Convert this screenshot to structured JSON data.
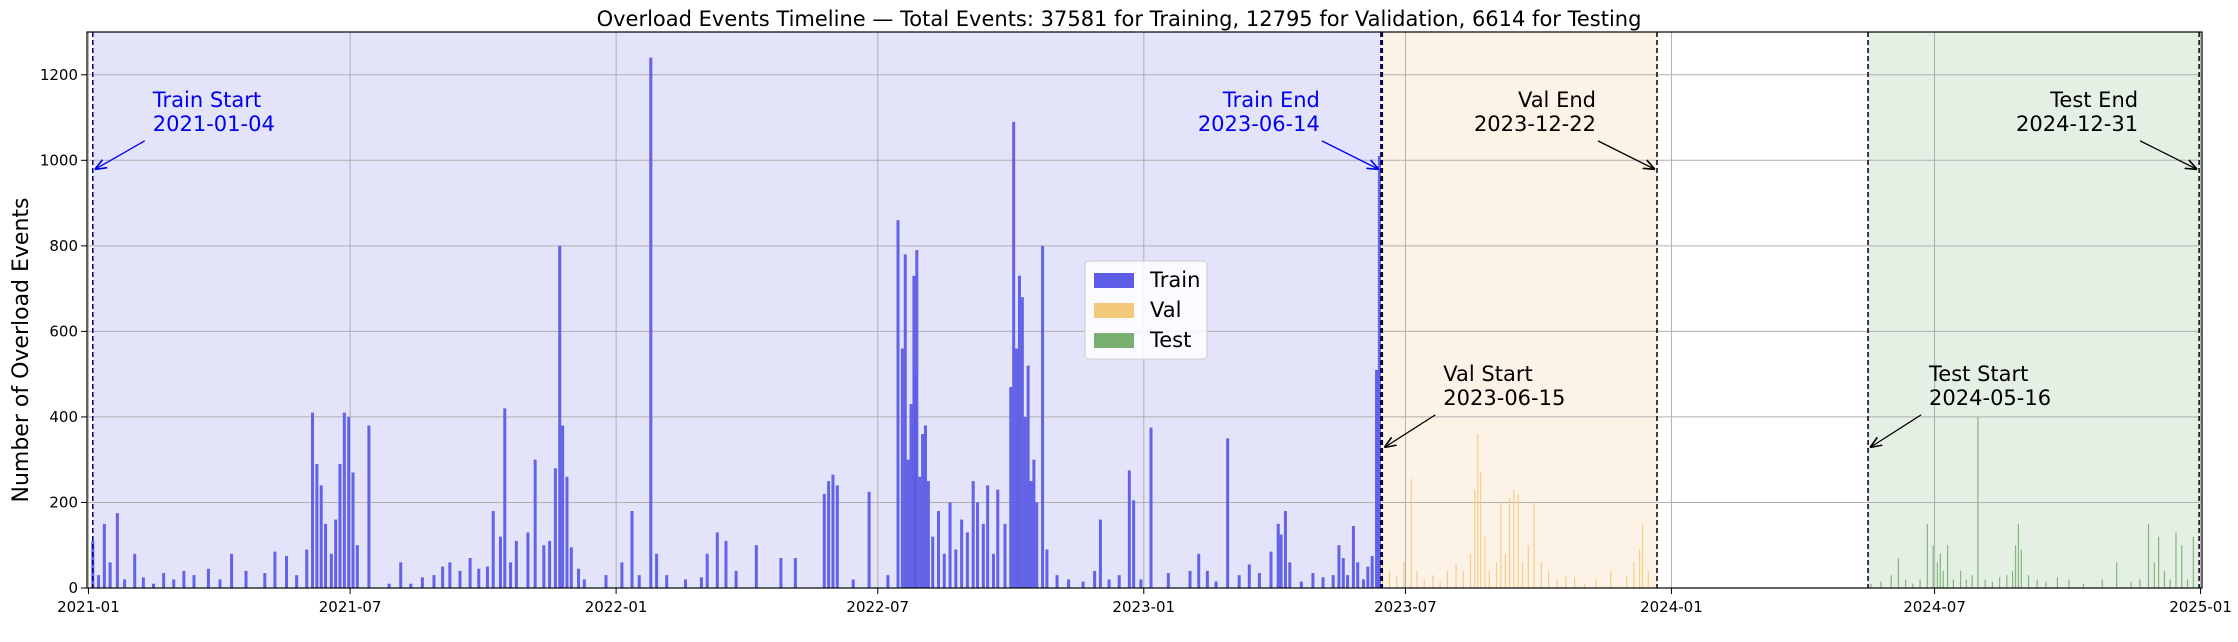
{
  "chart_data": {
    "type": "bar",
    "title": "Overload Events Timeline — Total Events: 37581 for Training, 12795 for Validation, 6614 for Testing",
    "xlabel": "",
    "ylabel": "Number of Overload Events",
    "x_axis": {
      "type": "date",
      "range": [
        "2020-12-31",
        "2025-01-02"
      ],
      "ticks": [
        {
          "date": "2021-01-01",
          "label": "2021-01"
        },
        {
          "date": "2021-07-01",
          "label": "2021-07"
        },
        {
          "date": "2022-01-01",
          "label": "2022-01"
        },
        {
          "date": "2022-07-01",
          "label": "2022-07"
        },
        {
          "date": "2023-01-01",
          "label": "2023-01"
        },
        {
          "date": "2023-07-01",
          "label": "2023-07"
        },
        {
          "date": "2024-01-01",
          "label": "2024-01"
        },
        {
          "date": "2024-07-01",
          "label": "2024-07"
        },
        {
          "date": "2025-01-01",
          "label": "2025-01"
        }
      ]
    },
    "y_axis": {
      "range": [
        0,
        1300
      ],
      "ticks": [
        0,
        200,
        400,
        600,
        800,
        1000,
        1200
      ]
    },
    "grid": true,
    "legend": {
      "placement": "center",
      "entries": [
        {
          "label": "Train",
          "color": "#5c5ce6"
        },
        {
          "label": "Val",
          "color": "#f5c97a"
        },
        {
          "label": "Test",
          "color": "#7aaf72"
        }
      ]
    },
    "regions": [
      {
        "name": "Train",
        "start": "2021-01-04",
        "end": "2023-06-14",
        "fill": "#e3e3fa"
      },
      {
        "name": "Val",
        "start": "2023-06-15",
        "end": "2023-12-22",
        "fill": "#fcf3e6"
      },
      {
        "name": "Test",
        "start": "2024-05-16",
        "end": "2024-12-31",
        "fill": "#e4f0e3"
      }
    ],
    "annotations": [
      {
        "line1": "Train Start",
        "line2": "2021-01-04",
        "color": "#0000ee",
        "target_date": "2021-01-04",
        "target_value": 980
      },
      {
        "line1": "Train End",
        "line2": "2023-06-14",
        "color": "#0000ee",
        "target_date": "2023-06-14",
        "target_value": 980
      },
      {
        "line1": "Val Start",
        "line2": "2023-06-15",
        "color": "#000000",
        "target_date": "2023-06-15",
        "target_value": 330
      },
      {
        "line1": "Val End",
        "line2": "2023-12-22",
        "color": "#000000",
        "target_date": "2023-12-22",
        "target_value": 980
      },
      {
        "line1": "Test Start",
        "line2": "2024-05-16",
        "color": "#000000",
        "target_date": "2024-05-16",
        "target_value": 330
      },
      {
        "line1": "Test End",
        "line2": "2024-12-31",
        "color": "#000000",
        "target_date": "2024-12-31",
        "target_value": 980
      }
    ],
    "series": [
      {
        "name": "Train",
        "color": "#5c5ce6",
        "points": [
          [
            "2021-01-04",
            110
          ],
          [
            "2021-01-08",
            30
          ],
          [
            "2021-01-12",
            150
          ],
          [
            "2021-01-16",
            60
          ],
          [
            "2021-01-21",
            175
          ],
          [
            "2021-01-26",
            20
          ],
          [
            "2021-02-02",
            80
          ],
          [
            "2021-02-08",
            25
          ],
          [
            "2021-02-15",
            10
          ],
          [
            "2021-02-22",
            35
          ],
          [
            "2021-03-01",
            20
          ],
          [
            "2021-03-08",
            40
          ],
          [
            "2021-03-15",
            30
          ],
          [
            "2021-03-25",
            45
          ],
          [
            "2021-04-02",
            20
          ],
          [
            "2021-04-10",
            80
          ],
          [
            "2021-04-20",
            40
          ],
          [
            "2021-05-03",
            35
          ],
          [
            "2021-05-10",
            85
          ],
          [
            "2021-05-18",
            75
          ],
          [
            "2021-05-25",
            30
          ],
          [
            "2021-06-01",
            90
          ],
          [
            "2021-06-05",
            410
          ],
          [
            "2021-06-08",
            290
          ],
          [
            "2021-06-11",
            240
          ],
          [
            "2021-06-14",
            150
          ],
          [
            "2021-06-18",
            80
          ],
          [
            "2021-06-21",
            160
          ],
          [
            "2021-06-24",
            290
          ],
          [
            "2021-06-27",
            410
          ],
          [
            "2021-06-30",
            400
          ],
          [
            "2021-07-03",
            270
          ],
          [
            "2021-07-06",
            100
          ],
          [
            "2021-07-14",
            380
          ],
          [
            "2021-07-28",
            10
          ],
          [
            "2021-08-05",
            60
          ],
          [
            "2021-08-12",
            10
          ],
          [
            "2021-08-20",
            25
          ],
          [
            "2021-08-28",
            30
          ],
          [
            "2021-09-03",
            50
          ],
          [
            "2021-09-08",
            60
          ],
          [
            "2021-09-15",
            40
          ],
          [
            "2021-09-22",
            70
          ],
          [
            "2021-09-28",
            45
          ],
          [
            "2021-10-04",
            50
          ],
          [
            "2021-10-08",
            180
          ],
          [
            "2021-10-13",
            120
          ],
          [
            "2021-10-16",
            420
          ],
          [
            "2021-10-20",
            60
          ],
          [
            "2021-10-24",
            110
          ],
          [
            "2021-11-01",
            130
          ],
          [
            "2021-11-06",
            300
          ],
          [
            "2021-11-12",
            100
          ],
          [
            "2021-11-16",
            110
          ],
          [
            "2021-11-20",
            280
          ],
          [
            "2021-11-23",
            800
          ],
          [
            "2021-11-25",
            380
          ],
          [
            "2021-11-28",
            260
          ],
          [
            "2021-12-01",
            95
          ],
          [
            "2021-12-06",
            45
          ],
          [
            "2021-12-10",
            20
          ],
          [
            "2021-12-25",
            30
          ],
          [
            "2022-01-05",
            60
          ],
          [
            "2022-01-12",
            180
          ],
          [
            "2022-01-17",
            30
          ],
          [
            "2022-01-25",
            1240
          ],
          [
            "2022-01-29",
            80
          ],
          [
            "2022-02-05",
            30
          ],
          [
            "2022-02-18",
            20
          ],
          [
            "2022-03-01",
            25
          ],
          [
            "2022-03-05",
            80
          ],
          [
            "2022-03-12",
            130
          ],
          [
            "2022-03-18",
            110
          ],
          [
            "2022-03-25",
            40
          ],
          [
            "2022-04-08",
            100
          ],
          [
            "2022-04-25",
            70
          ],
          [
            "2022-05-05",
            70
          ],
          [
            "2022-05-25",
            220
          ],
          [
            "2022-05-28",
            250
          ],
          [
            "2022-05-31",
            265
          ],
          [
            "2022-06-03",
            240
          ],
          [
            "2022-06-14",
            20
          ],
          [
            "2022-06-25",
            225
          ],
          [
            "2022-07-08",
            30
          ],
          [
            "2022-07-15",
            860
          ],
          [
            "2022-07-18",
            560
          ],
          [
            "2022-07-20",
            780
          ],
          [
            "2022-07-22",
            300
          ],
          [
            "2022-07-24",
            430
          ],
          [
            "2022-07-26",
            730
          ],
          [
            "2022-07-27",
            500
          ],
          [
            "2022-07-28",
            790
          ],
          [
            "2022-07-30",
            260
          ],
          [
            "2022-08-01",
            360
          ],
          [
            "2022-08-03",
            380
          ],
          [
            "2022-08-05",
            250
          ],
          [
            "2022-08-08",
            120
          ],
          [
            "2022-08-12",
            180
          ],
          [
            "2022-08-16",
            80
          ],
          [
            "2022-08-20",
            200
          ],
          [
            "2022-08-24",
            90
          ],
          [
            "2022-08-28",
            160
          ],
          [
            "2022-09-01",
            130
          ],
          [
            "2022-09-05",
            250
          ],
          [
            "2022-09-08",
            200
          ],
          [
            "2022-09-12",
            150
          ],
          [
            "2022-09-15",
            240
          ],
          [
            "2022-09-19",
            80
          ],
          [
            "2022-09-22",
            230
          ],
          [
            "2022-09-27",
            150
          ],
          [
            "2022-10-01",
            470
          ],
          [
            "2022-10-03",
            1090
          ],
          [
            "2022-10-05",
            560
          ],
          [
            "2022-10-07",
            730
          ],
          [
            "2022-10-09",
            680
          ],
          [
            "2022-10-11",
            400
          ],
          [
            "2022-10-13",
            520
          ],
          [
            "2022-10-15",
            250
          ],
          [
            "2022-10-17",
            300
          ],
          [
            "2022-10-19",
            200
          ],
          [
            "2022-10-23",
            800
          ],
          [
            "2022-10-26",
            90
          ],
          [
            "2022-11-02",
            30
          ],
          [
            "2022-11-10",
            20
          ],
          [
            "2022-11-20",
            15
          ],
          [
            "2022-11-28",
            40
          ],
          [
            "2022-12-02",
            160
          ],
          [
            "2022-12-08",
            20
          ],
          [
            "2022-12-15",
            30
          ],
          [
            "2022-12-22",
            275
          ],
          [
            "2022-12-25",
            205
          ],
          [
            "2022-12-30",
            20
          ],
          [
            "2023-01-06",
            375
          ],
          [
            "2023-01-18",
            35
          ],
          [
            "2023-02-02",
            40
          ],
          [
            "2023-02-08",
            80
          ],
          [
            "2023-02-14",
            40
          ],
          [
            "2023-02-20",
            15
          ],
          [
            "2023-02-28",
            350
          ],
          [
            "2023-03-08",
            30
          ],
          [
            "2023-03-15",
            55
          ],
          [
            "2023-03-22",
            35
          ],
          [
            "2023-03-30",
            85
          ],
          [
            "2023-04-04",
            150
          ],
          [
            "2023-04-06",
            125
          ],
          [
            "2023-04-09",
            180
          ],
          [
            "2023-04-12",
            60
          ],
          [
            "2023-04-20",
            15
          ],
          [
            "2023-04-28",
            35
          ],
          [
            "2023-05-05",
            25
          ],
          [
            "2023-05-12",
            30
          ],
          [
            "2023-05-16",
            100
          ],
          [
            "2023-05-19",
            70
          ],
          [
            "2023-05-22",
            30
          ],
          [
            "2023-05-26",
            145
          ],
          [
            "2023-05-29",
            60
          ],
          [
            "2023-06-02",
            20
          ],
          [
            "2023-06-05",
            50
          ],
          [
            "2023-06-08",
            75
          ],
          [
            "2023-06-11",
            510
          ],
          [
            "2023-06-13",
            1010
          ]
        ]
      },
      {
        "name": "Val",
        "color": "#f5c97a",
        "points": [
          [
            "2023-06-15",
            70
          ],
          [
            "2023-06-20",
            40
          ],
          [
            "2023-06-25",
            30
          ],
          [
            "2023-06-30",
            60
          ],
          [
            "2023-07-05",
            255
          ],
          [
            "2023-07-09",
            40
          ],
          [
            "2023-07-14",
            20
          ],
          [
            "2023-07-20",
            30
          ],
          [
            "2023-07-25",
            15
          ],
          [
            "2023-07-30",
            40
          ],
          [
            "2023-08-05",
            55
          ],
          [
            "2023-08-10",
            40
          ],
          [
            "2023-08-15",
            80
          ],
          [
            "2023-08-18",
            230
          ],
          [
            "2023-08-20",
            360
          ],
          [
            "2023-08-22",
            270
          ],
          [
            "2023-08-25",
            120
          ],
          [
            "2023-08-28",
            40
          ],
          [
            "2023-09-02",
            60
          ],
          [
            "2023-09-05",
            200
          ],
          [
            "2023-09-08",
            80
          ],
          [
            "2023-09-11",
            210
          ],
          [
            "2023-09-14",
            230
          ],
          [
            "2023-09-17",
            220
          ],
          [
            "2023-09-20",
            60
          ],
          [
            "2023-09-24",
            100
          ],
          [
            "2023-09-28",
            200
          ],
          [
            "2023-10-03",
            60
          ],
          [
            "2023-10-08",
            40
          ],
          [
            "2023-10-14",
            20
          ],
          [
            "2023-10-20",
            30
          ],
          [
            "2023-10-26",
            25
          ],
          [
            "2023-11-02",
            10
          ],
          [
            "2023-11-10",
            20
          ],
          [
            "2023-11-20",
            40
          ],
          [
            "2023-12-01",
            30
          ],
          [
            "2023-12-06",
            60
          ],
          [
            "2023-12-10",
            90
          ],
          [
            "2023-12-12",
            150
          ],
          [
            "2023-12-16",
            40
          ]
        ]
      },
      {
        "name": "Test",
        "color": "#7aaf72",
        "points": [
          [
            "2024-05-18",
            10
          ],
          [
            "2024-05-25",
            15
          ],
          [
            "2024-06-01",
            30
          ],
          [
            "2024-06-06",
            70
          ],
          [
            "2024-06-11",
            20
          ],
          [
            "2024-06-16",
            10
          ],
          [
            "2024-06-21",
            20
          ],
          [
            "2024-06-26",
            150
          ],
          [
            "2024-06-30",
            100
          ],
          [
            "2024-07-03",
            60
          ],
          [
            "2024-07-05",
            80
          ],
          [
            "2024-07-07",
            40
          ],
          [
            "2024-07-10",
            100
          ],
          [
            "2024-07-14",
            20
          ],
          [
            "2024-07-19",
            40
          ],
          [
            "2024-07-23",
            20
          ],
          [
            "2024-07-27",
            30
          ],
          [
            "2024-07-31",
            400
          ],
          [
            "2024-08-05",
            20
          ],
          [
            "2024-08-10",
            15
          ],
          [
            "2024-08-15",
            25
          ],
          [
            "2024-08-20",
            30
          ],
          [
            "2024-08-24",
            40
          ],
          [
            "2024-08-26",
            100
          ],
          [
            "2024-08-28",
            150
          ],
          [
            "2024-08-30",
            90
          ],
          [
            "2024-09-04",
            30
          ],
          [
            "2024-09-10",
            20
          ],
          [
            "2024-09-16",
            15
          ],
          [
            "2024-09-24",
            25
          ],
          [
            "2024-10-02",
            20
          ],
          [
            "2024-10-12",
            10
          ],
          [
            "2024-10-25",
            20
          ],
          [
            "2024-11-04",
            60
          ],
          [
            "2024-11-14",
            15
          ],
          [
            "2024-11-20",
            20
          ],
          [
            "2024-11-26",
            150
          ],
          [
            "2024-11-30",
            60
          ],
          [
            "2024-12-03",
            120
          ],
          [
            "2024-12-07",
            40
          ],
          [
            "2024-12-11",
            20
          ],
          [
            "2024-12-15",
            130
          ],
          [
            "2024-12-19",
            100
          ],
          [
            "2024-12-23",
            20
          ],
          [
            "2024-12-27",
            120
          ]
        ]
      }
    ]
  }
}
